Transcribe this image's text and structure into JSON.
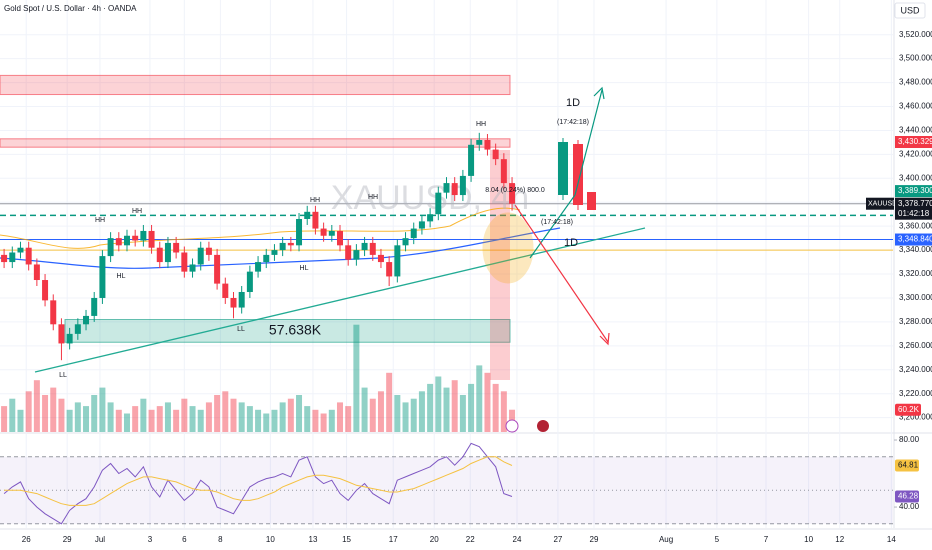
{
  "chart_data": [
    {
      "type": "candlestick",
      "title": "Gold Spot / U.S. Dollar · 4h · OANDA",
      "currency": "USD",
      "watermark": "XAUUSD, 4h",
      "up_color": "#089981",
      "down_color": "#f23645",
      "x": [
        0,
        1,
        2,
        3,
        4,
        5,
        6,
        7,
        8,
        9,
        10,
        11,
        12,
        13,
        14,
        15,
        16,
        17,
        18,
        19,
        20,
        21,
        22,
        23,
        24,
        25,
        26,
        27,
        28,
        29,
        30,
        31,
        32,
        33,
        34,
        35,
        36,
        37,
        38,
        39,
        40,
        41,
        42,
        43,
        44,
        45,
        46,
        47,
        48,
        49,
        50,
        51,
        52,
        53,
        54,
        55,
        56,
        57,
        58,
        59,
        60,
        61,
        62
      ],
      "open": [
        3336,
        3330,
        3338,
        3342,
        3328,
        3315,
        3298,
        3278,
        3262,
        3270,
        3278,
        3285,
        3300,
        3335,
        3350,
        3344,
        3352,
        3348,
        3356,
        3342,
        3330,
        3346,
        3338,
        3322,
        3328,
        3342,
        3336,
        3312,
        3300,
        3292,
        3305,
        3322,
        3330,
        3336,
        3340,
        3346,
        3344,
        3366,
        3372,
        3358,
        3352,
        3356,
        3344,
        3332,
        3340,
        3346,
        3336,
        3330,
        3318,
        3344,
        3350,
        3358,
        3364,
        3370,
        3388,
        3396,
        3386,
        3402,
        3428,
        3432,
        3424,
        3416,
        3396
      ],
      "high": [
        3341,
        3343,
        3347,
        3347,
        3333,
        3320,
        3303,
        3283,
        3275,
        3283,
        3290,
        3305,
        3340,
        3355,
        3355,
        3357,
        3357,
        3361,
        3361,
        3347,
        3351,
        3351,
        3343,
        3333,
        3347,
        3347,
        3341,
        3317,
        3305,
        3310,
        3327,
        3335,
        3341,
        3345,
        3351,
        3351,
        3371,
        3377,
        3377,
        3363,
        3361,
        3361,
        3349,
        3345,
        3351,
        3351,
        3341,
        3335,
        3349,
        3355,
        3363,
        3369,
        3375,
        3393,
        3401,
        3401,
        3407,
        3433,
        3438,
        3437,
        3429,
        3421,
        3401
      ],
      "low": [
        3325,
        3325,
        3333,
        3323,
        3310,
        3293,
        3273,
        3248,
        3257,
        3265,
        3273,
        3280,
        3295,
        3330,
        3339,
        3339,
        3343,
        3343,
        3337,
        3325,
        3325,
        3333,
        3317,
        3317,
        3323,
        3331,
        3307,
        3295,
        3283,
        3287,
        3300,
        3317,
        3325,
        3331,
        3335,
        3339,
        3339,
        3361,
        3353,
        3347,
        3347,
        3339,
        3327,
        3327,
        3335,
        3331,
        3325,
        3310,
        3313,
        3339,
        3345,
        3353,
        3359,
        3365,
        3383,
        3381,
        3381,
        3397,
        3423,
        3419,
        3411,
        3391,
        3373
      ],
      "close": [
        3330,
        3338,
        3342,
        3328,
        3315,
        3298,
        3278,
        3262,
        3270,
        3278,
        3285,
        3300,
        3335,
        3350,
        3344,
        3352,
        3348,
        3356,
        3342,
        3330,
        3346,
        3338,
        3322,
        3328,
        3342,
        3336,
        3312,
        3300,
        3292,
        3305,
        3322,
        3330,
        3336,
        3340,
        3346,
        3344,
        3366,
        3372,
        3358,
        3352,
        3356,
        3344,
        3332,
        3340,
        3346,
        3336,
        3330,
        3318,
        3344,
        3350,
        3358,
        3364,
        3370,
        3388,
        3396,
        3386,
        3402,
        3428,
        3432,
        3424,
        3416,
        3396,
        3378.77
      ],
      "volume": [
        70,
        90,
        60,
        110,
        140,
        100,
        120,
        90,
        60,
        80,
        70,
        100,
        120,
        80,
        60,
        50,
        70,
        90,
        60,
        70,
        80,
        60,
        90,
        70,
        60,
        80,
        100,
        110,
        90,
        80,
        70,
        60,
        50,
        60,
        80,
        90,
        100,
        70,
        60,
        50,
        60,
        80,
        70,
        290,
        120,
        90,
        110,
        160,
        100,
        80,
        90,
        110,
        130,
        150,
        120,
        140,
        100,
        130,
        180,
        160,
        130,
        110,
        60.2
      ],
      "volume_last_label": "60.2K",
      "xlim": [
        -0.5,
        108.5
      ],
      "ylim": [
        3188,
        3549
      ],
      "yticks": [
        {
          "value": 3200,
          "label": "3,200.000"
        },
        {
          "value": 3220,
          "label": "3,220.000"
        },
        {
          "value": 3240,
          "label": "3,240.000"
        },
        {
          "value": 3260,
          "label": "3,260.000"
        },
        {
          "value": 3280,
          "label": "3,280.000"
        },
        {
          "value": 3300,
          "label": "3,300.000"
        },
        {
          "value": 3320,
          "label": "3,320.000"
        },
        {
          "value": 3340,
          "label": "3,340.000"
        },
        {
          "value": 3360,
          "label": "3,360.000"
        },
        {
          "value": 3380,
          "label": "3,380.000"
        },
        {
          "value": 3400,
          "label": "3,400.000"
        },
        {
          "value": 3420,
          "label": "3,420.000"
        },
        {
          "value": 3440,
          "label": "3,440.000"
        },
        {
          "value": 3460,
          "label": "3,460.000"
        },
        {
          "value": 3480,
          "label": "3,480.000"
        },
        {
          "value": 3500,
          "label": "3,500.000"
        },
        {
          "value": 3520,
          "label": "3,520.000"
        }
      ],
      "xticks": [
        {
          "value": 2.7,
          "label": "26"
        },
        {
          "value": 7.7,
          "label": "29"
        },
        {
          "value": 11.7,
          "label": "Jul"
        },
        {
          "value": 17.8,
          "label": "3"
        },
        {
          "value": 22,
          "label": "6"
        },
        {
          "value": 26.4,
          "label": "8"
        },
        {
          "value": 32.5,
          "label": "10"
        },
        {
          "value": 37.7,
          "label": "13"
        },
        {
          "value": 41.8,
          "label": "15"
        },
        {
          "value": 47.5,
          "label": "17"
        },
        {
          "value": 52.5,
          "label": "20"
        },
        {
          "value": 56.9,
          "label": "22"
        },
        {
          "value": 62.6,
          "label": "24"
        },
        {
          "value": 67.6,
          "label": "27"
        },
        {
          "value": 72,
          "label": "29"
        },
        {
          "value": 80.8,
          "label": "Aug"
        },
        {
          "value": 87,
          "label": "5"
        },
        {
          "value": 93,
          "label": "7"
        },
        {
          "value": 98.2,
          "label": "10"
        },
        {
          "value": 102,
          "label": "12"
        },
        {
          "value": 108.3,
          "label": "14"
        }
      ],
      "levels": [
        {
          "value": 3369,
          "color": "#089981",
          "dashed": true
        },
        {
          "value": 3378.77,
          "color": "#9598a1"
        },
        {
          "value": 3348.84,
          "color": "#2962ff"
        },
        {
          "value": 3340,
          "color": "#f5c242"
        }
      ],
      "zones": [
        {
          "from": 3470,
          "to": 3486,
          "color": "#f23645"
        },
        {
          "from": 3426,
          "to": 3433,
          "color": "#f23645"
        },
        {
          "from": 3263,
          "to": 3282,
          "color": "#089981",
          "label": "57.638K"
        }
      ],
      "price_labels": [
        {
          "value": 3430.329,
          "label": "3,430.329",
          "color": "#f23645"
        },
        {
          "value": 3389.3,
          "label": "3,389.300",
          "color": "#089981"
        },
        {
          "value": 3378.77,
          "label": "3,378.770",
          "color": "#131722",
          "symbol": "XAUUSD",
          "countdown": "01:42:18"
        },
        {
          "value": 3348.84,
          "label": "3,348.840",
          "color": "#2962ff"
        }
      ],
      "annotations": [
        "HH",
        "HH",
        "HH",
        "HH",
        "HH",
        "HL",
        "HL",
        "1D",
        "(17:42:18)",
        "8.04 (0.24%) 800.0",
        "(17:42:18)",
        "1D",
        "LL",
        "LL"
      ]
    },
    {
      "type": "line",
      "ylim": [
        27.5,
        83
      ],
      "yticks": [
        {
          "value": 80,
          "label": "80.00"
        },
        {
          "value": 40,
          "label": "40.00"
        }
      ],
      "bands": [
        30,
        50,
        70
      ],
      "series": [
        {
          "name": "RSI",
          "color": "#7e57c2",
          "values": [
            48,
            52,
            55,
            45,
            40,
            36,
            33,
            30,
            38,
            42,
            45,
            52,
            62,
            66,
            60,
            63,
            58,
            64,
            52,
            46,
            56,
            50,
            44,
            48,
            56,
            52,
            40,
            38,
            36,
            44,
            52,
            55,
            57,
            58,
            60,
            58,
            68,
            70,
            58,
            54,
            56,
            48,
            44,
            50,
            54,
            48,
            45,
            42,
            56,
            58,
            60,
            62,
            64,
            68,
            70,
            65,
            70,
            78,
            76,
            70,
            64,
            48,
            46.28
          ]
        },
        {
          "name": "RSI MA",
          "color": "#f5c242",
          "values": [
            50,
            50,
            50,
            49,
            48,
            46,
            44,
            42,
            41,
            41,
            41,
            42,
            45,
            48,
            51,
            54,
            56,
            58,
            58,
            57,
            56,
            55,
            53,
            51,
            50,
            50,
            49,
            47,
            45,
            44,
            44,
            45,
            47,
            49,
            52,
            54,
            56,
            58,
            59,
            59,
            58,
            57,
            55,
            53,
            52,
            51,
            50,
            49,
            49,
            50,
            51,
            53,
            55,
            57,
            59,
            61,
            63,
            66,
            68,
            70,
            70,
            67,
            64.81
          ]
        }
      ]
    }
  ]
}
